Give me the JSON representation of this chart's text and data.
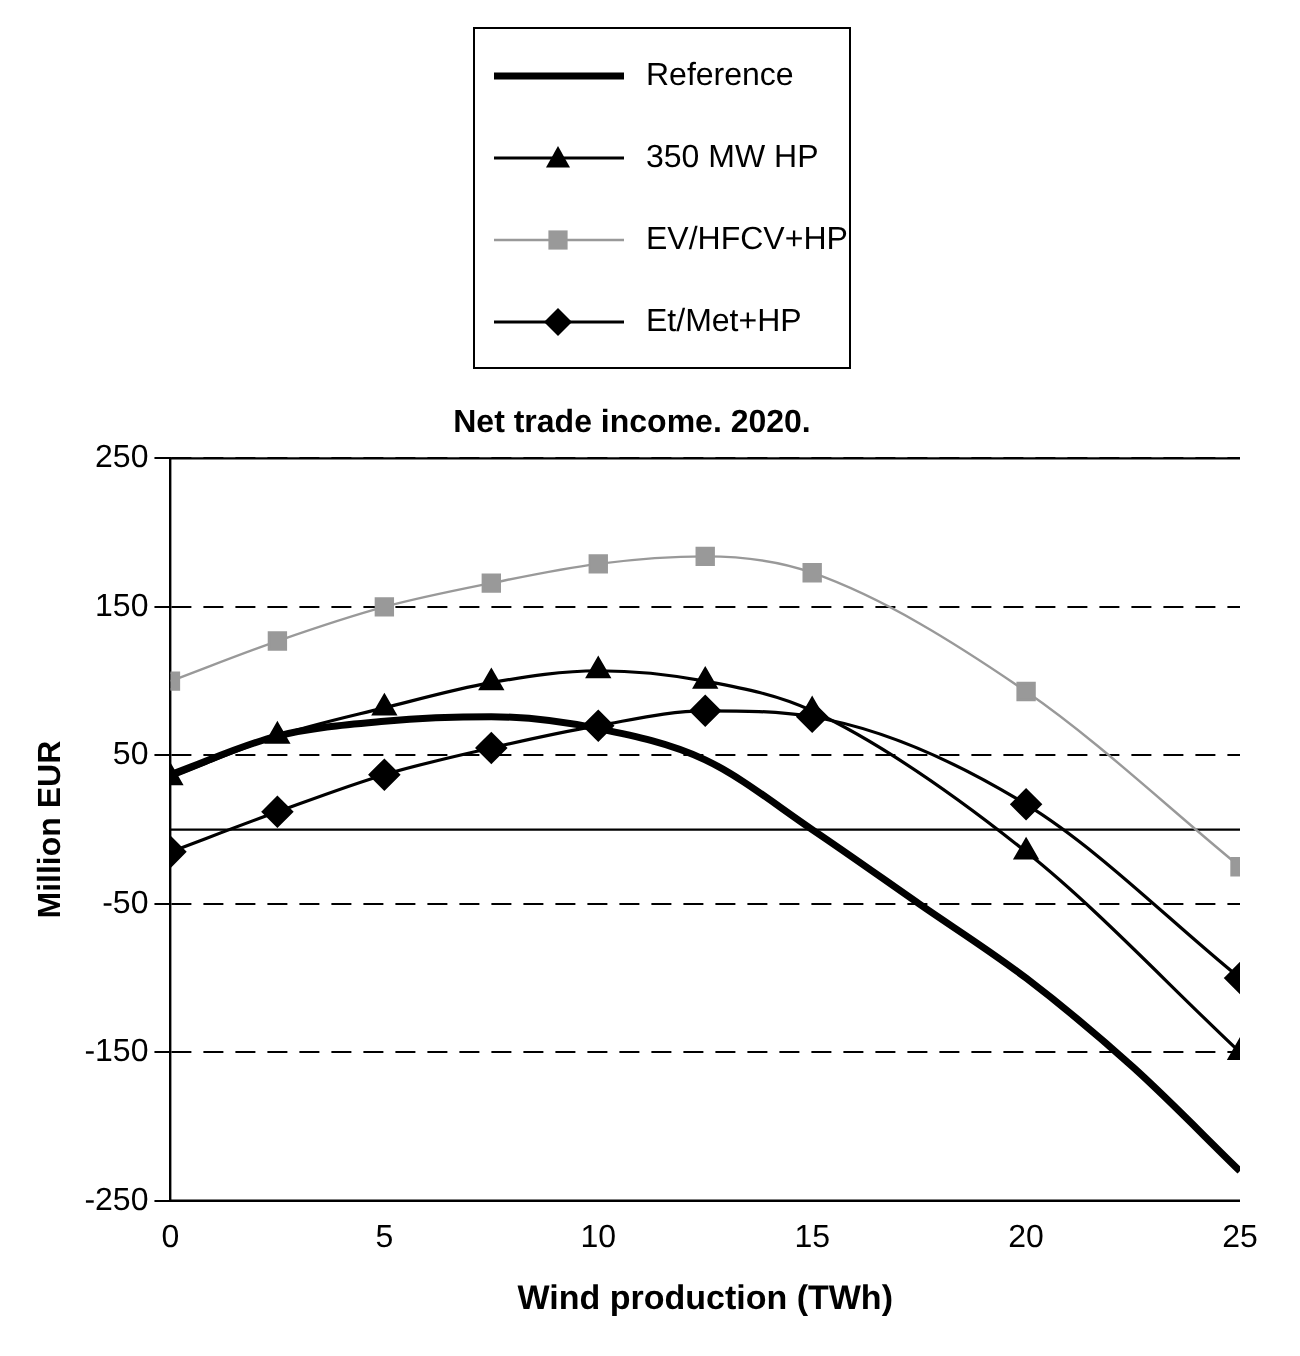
{
  "chart_data": {
    "type": "line",
    "title": "Net trade income. 2020.",
    "xlabel": "Wind production (TWh)",
    "ylabel": "Million EUR",
    "xlim": [
      0,
      25
    ],
    "xticks": [
      0,
      5,
      10,
      15,
      20,
      25
    ],
    "ylim": [
      -250,
      250
    ],
    "yticks": [
      -250,
      -150,
      -50,
      50,
      150,
      250
    ],
    "grid": "y",
    "legend": "top",
    "line_style": "solid",
    "ref_lines": [
      {
        "axis": "y",
        "value": 0,
        "line_style": "solid"
      }
    ],
    "series": [
      {
        "name": "Reference",
        "color": "#000000",
        "marker": "none",
        "x": [
          0,
          2.5,
          5,
          7.5,
          10,
          12.5,
          15,
          17.5,
          20,
          22.5,
          25
        ],
        "values": [
          37,
          63,
          73,
          76,
          68,
          47,
          0,
          -50,
          -100,
          -160,
          -230
        ]
      },
      {
        "name": "350 MW HP",
        "color": "#000000",
        "marker": "triangle",
        "x": [
          0,
          2.5,
          5,
          7.5,
          10,
          12.5,
          15,
          20,
          25
        ],
        "values": [
          35,
          63,
          82,
          99,
          107,
          100,
          80,
          -15,
          -150
        ]
      },
      {
        "name": "EV/HFCV+HP",
        "color": "#999999",
        "marker": "square",
        "x": [
          0,
          2.5,
          5,
          7.5,
          10,
          12.5,
          15,
          20,
          25
        ],
        "values": [
          100,
          127,
          150,
          166,
          179,
          184,
          173,
          93,
          -25
        ]
      },
      {
        "name": "Et/Met+HP",
        "color": "#000000",
        "marker": "diamond",
        "x": [
          0,
          2.5,
          5,
          7.5,
          10,
          12.5,
          15,
          20,
          25
        ],
        "values": [
          -15,
          12,
          37,
          55,
          70,
          80,
          76,
          17,
          -100
        ]
      }
    ]
  }
}
